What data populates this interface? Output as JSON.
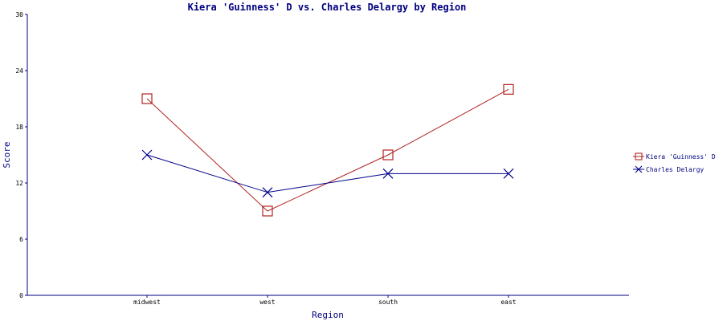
{
  "chart_data": {
    "type": "line",
    "title": "Kiera 'Guinness' D vs. Charles Delargy by Region",
    "xlabel": "Region",
    "ylabel": "Score",
    "categories": [
      "midwest",
      "west",
      "south",
      "east"
    ],
    "ylim": [
      0,
      30
    ],
    "yticks": [
      0,
      6,
      12,
      18,
      24,
      30
    ],
    "grid": false,
    "legend_position": "right",
    "series": [
      {
        "name": "Kiera 'Guinness' D",
        "values": [
          21,
          9,
          15,
          22
        ],
        "color": "#b22222",
        "marker": "square"
      },
      {
        "name": "Charles Delargy",
        "values": [
          15,
          11,
          13,
          13
        ],
        "color": "#00008b",
        "marker": "x"
      }
    ],
    "axis_color": "#000080"
  }
}
